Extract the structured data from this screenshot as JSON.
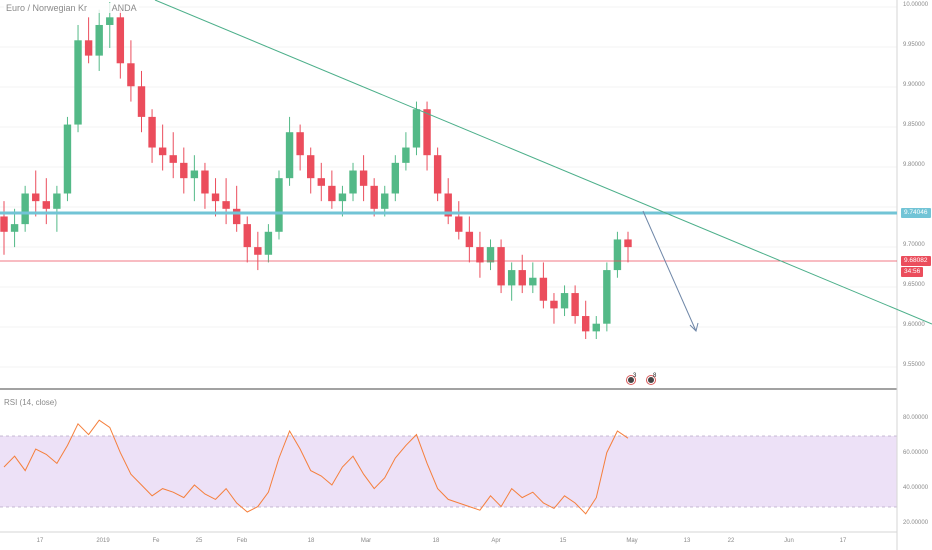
{
  "header": {
    "title": "Euro / Norwegian Kr",
    "source": "ANDA",
    "rsi_label": "RSI (14, close)"
  },
  "price_axis": {
    "ticks": [
      "10.00000",
      "9.95000",
      "9.90000",
      "9.85000",
      "9.80000",
      "9.70000",
      "9.65000",
      "9.60000",
      "9.55000"
    ]
  },
  "rsi_axis": {
    "ticks": [
      "80.00000",
      "60.00000",
      "40.00000",
      "20.00000"
    ]
  },
  "time_axis": {
    "ticks": [
      "17",
      "2019",
      "Fe",
      "25",
      "Feb",
      "18",
      "Mar",
      "18",
      "Apr",
      "15",
      "May",
      "13",
      "22",
      "Jun",
      "17"
    ]
  },
  "price_tags": {
    "level": "9.74046",
    "last": "9.68082",
    "countdown": "34:56"
  },
  "events": {
    "first_count": "3",
    "second_count": "8"
  },
  "colors": {
    "bull": "#53b987",
    "bear": "#eb4d5c",
    "trendline": "#4caf8a",
    "level_line": "#72c4d6",
    "last_price_line": "#eb4d5c",
    "rsi_line": "#f57f3c",
    "rsi_band": "#ede1f7",
    "arrow": "#6f87a8"
  },
  "chart_data": [
    {
      "type": "candlestick",
      "series": [
        {
          "name": "Euro / Norwegian Kr",
          "ohlc": [
            [
              9.72,
              9.74,
              9.67,
              9.7
            ],
            [
              9.7,
              9.73,
              9.68,
              9.71
            ],
            [
              9.71,
              9.76,
              9.7,
              9.75
            ],
            [
              9.75,
              9.78,
              9.72,
              9.74
            ],
            [
              9.74,
              9.77,
              9.71,
              9.73
            ],
            [
              9.73,
              9.76,
              9.7,
              9.75
            ],
            [
              9.75,
              9.85,
              9.74,
              9.84
            ],
            [
              9.84,
              9.97,
              9.83,
              9.95
            ],
            [
              9.95,
              9.98,
              9.92,
              9.93
            ],
            [
              9.93,
              9.99,
              9.91,
              9.97
            ],
            [
              9.97,
              10.0,
              9.94,
              9.98
            ],
            [
              9.98,
              9.99,
              9.9,
              9.92
            ],
            [
              9.92,
              9.95,
              9.87,
              9.89
            ],
            [
              9.89,
              9.91,
              9.83,
              9.85
            ],
            [
              9.85,
              9.86,
              9.79,
              9.81
            ],
            [
              9.81,
              9.84,
              9.78,
              9.8
            ],
            [
              9.8,
              9.83,
              9.77,
              9.79
            ],
            [
              9.79,
              9.81,
              9.75,
              9.77
            ],
            [
              9.77,
              9.8,
              9.74,
              9.78
            ],
            [
              9.78,
              9.79,
              9.73,
              9.75
            ],
            [
              9.75,
              9.77,
              9.72,
              9.74
            ],
            [
              9.74,
              9.77,
              9.71,
              9.73
            ],
            [
              9.73,
              9.76,
              9.7,
              9.71
            ],
            [
              9.71,
              9.72,
              9.66,
              9.68
            ],
            [
              9.68,
              9.7,
              9.65,
              9.67
            ],
            [
              9.67,
              9.71,
              9.66,
              9.7
            ],
            [
              9.7,
              9.78,
              9.69,
              9.77
            ],
            [
              9.77,
              9.85,
              9.76,
              9.83
            ],
            [
              9.83,
              9.84,
              9.78,
              9.8
            ],
            [
              9.8,
              9.81,
              9.75,
              9.77
            ],
            [
              9.77,
              9.79,
              9.74,
              9.76
            ],
            [
              9.76,
              9.78,
              9.73,
              9.74
            ],
            [
              9.74,
              9.76,
              9.72,
              9.75
            ],
            [
              9.75,
              9.79,
              9.74,
              9.78
            ],
            [
              9.78,
              9.8,
              9.74,
              9.76
            ],
            [
              9.76,
              9.77,
              9.72,
              9.73
            ],
            [
              9.73,
              9.76,
              9.72,
              9.75
            ],
            [
              9.75,
              9.8,
              9.74,
              9.79
            ],
            [
              9.79,
              9.83,
              9.78,
              9.81
            ],
            [
              9.81,
              9.87,
              9.8,
              9.86
            ],
            [
              9.86,
              9.87,
              9.78,
              9.8
            ],
            [
              9.8,
              9.81,
              9.74,
              9.75
            ],
            [
              9.75,
              9.77,
              9.71,
              9.72
            ],
            [
              9.72,
              9.74,
              9.69,
              9.7
            ],
            [
              9.7,
              9.72,
              9.66,
              9.68
            ],
            [
              9.68,
              9.7,
              9.64,
              9.66
            ],
            [
              9.66,
              9.69,
              9.65,
              9.68
            ],
            [
              9.68,
              9.69,
              9.62,
              9.63
            ],
            [
              9.63,
              9.66,
              9.61,
              9.65
            ],
            [
              9.65,
              9.67,
              9.62,
              9.63
            ],
            [
              9.63,
              9.66,
              9.62,
              9.64
            ],
            [
              9.64,
              9.66,
              9.6,
              9.61
            ],
            [
              9.61,
              9.62,
              9.58,
              9.6
            ],
            [
              9.6,
              9.63,
              9.59,
              9.62
            ],
            [
              9.62,
              9.63,
              9.58,
              9.59
            ],
            [
              9.59,
              9.61,
              9.56,
              9.57
            ],
            [
              9.57,
              9.59,
              9.56,
              9.58
            ],
            [
              9.58,
              9.66,
              9.57,
              9.65
            ],
            [
              9.65,
              9.7,
              9.64,
              9.69
            ],
            [
              9.69,
              9.7,
              9.66,
              9.68
            ]
          ]
        }
      ],
      "ylim": [
        9.53,
        10.0
      ],
      "annotations": [
        "9.74046",
        "9.68082",
        "34:56"
      ]
    },
    {
      "type": "line",
      "series": [
        {
          "name": "RSI (14, close)",
          "values": [
            50,
            56,
            48,
            60,
            57,
            52,
            62,
            74,
            68,
            76,
            72,
            58,
            46,
            40,
            34,
            38,
            36,
            33,
            40,
            35,
            32,
            38,
            30,
            25,
            28,
            36,
            55,
            70,
            60,
            48,
            45,
            40,
            50,
            56,
            46,
            38,
            44,
            55,
            62,
            68,
            52,
            38,
            32,
            30,
            28,
            26,
            34,
            28,
            38,
            33,
            36,
            30,
            27,
            34,
            30,
            24,
            33,
            58,
            70,
            66
          ]
        }
      ],
      "ylim": [
        15,
        90
      ],
      "bands": [
        30,
        70
      ]
    }
  ]
}
